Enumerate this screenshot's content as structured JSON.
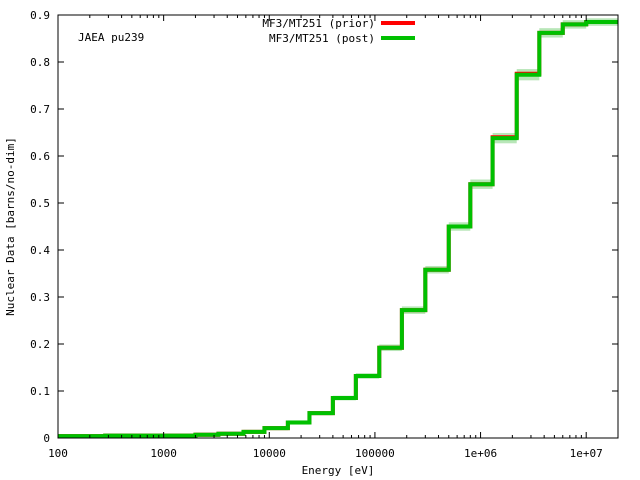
{
  "chart_data": {
    "type": "line",
    "title": "",
    "annotation": "JAEA pu239",
    "xlabel": "Energy [eV]",
    "ylabel": "Nuclear Data [barns/no-dim]",
    "x_scale": "log",
    "xlim": [
      100,
      20000000
    ],
    "ylim": [
      0,
      0.9
    ],
    "x_ticks": [
      {
        "value": 100,
        "label": "100"
      },
      {
        "value": 1000,
        "label": "1000"
      },
      {
        "value": 10000,
        "label": "10000"
      },
      {
        "value": 100000,
        "label": "100000"
      },
      {
        "value": 1000000,
        "label": "1e+06"
      },
      {
        "value": 10000000,
        "label": "1e+07"
      }
    ],
    "y_ticks": [
      {
        "value": 0,
        "label": "0"
      },
      {
        "value": 0.1,
        "label": "0.1"
      },
      {
        "value": 0.2,
        "label": "0.2"
      },
      {
        "value": 0.3,
        "label": "0.3"
      },
      {
        "value": 0.4,
        "label": "0.4"
      },
      {
        "value": 0.5,
        "label": "0.5"
      },
      {
        "value": 0.6,
        "label": "0.6"
      },
      {
        "value": 0.7,
        "label": "0.7"
      },
      {
        "value": 0.8,
        "label": "0.8"
      },
      {
        "value": 0.9,
        "label": "0.9"
      }
    ],
    "legend_position": "top-center",
    "step_edges": [
      100,
      280,
      1000,
      2000,
      3300,
      5700,
      9000,
      15000,
      24000,
      40000,
      66000,
      110000,
      180000,
      300000,
      500000,
      800000,
      1300000,
      2200000,
      3600000,
      6000000,
      10000000,
      20000000
    ],
    "series": [
      {
        "name": "MF3/MT251 (prior)",
        "color": "#ff0000",
        "values": [
          0.004,
          0.005,
          0.005,
          0.007,
          0.009,
          0.013,
          0.021,
          0.033,
          0.053,
          0.085,
          0.132,
          0.192,
          0.272,
          0.358,
          0.45,
          0.54,
          0.64,
          0.775,
          0.862,
          0.88,
          0.885
        ]
      },
      {
        "name": "MF3/MT251 (post)",
        "color": "#00c000",
        "values": [
          0.004,
          0.005,
          0.005,
          0.007,
          0.009,
          0.013,
          0.021,
          0.033,
          0.053,
          0.085,
          0.132,
          0.192,
          0.272,
          0.358,
          0.45,
          0.54,
          0.638,
          0.773,
          0.862,
          0.88,
          0.885
        ]
      }
    ],
    "uncertainty_band_color": "#b8e6b8",
    "uncertainty": [
      0.001,
      0.001,
      0.001,
      0.001,
      0.001,
      0.002,
      0.002,
      0.003,
      0.004,
      0.005,
      0.006,
      0.007,
      0.008,
      0.008,
      0.009,
      0.01,
      0.011,
      0.012,
      0.01,
      0.009,
      0.008
    ]
  }
}
